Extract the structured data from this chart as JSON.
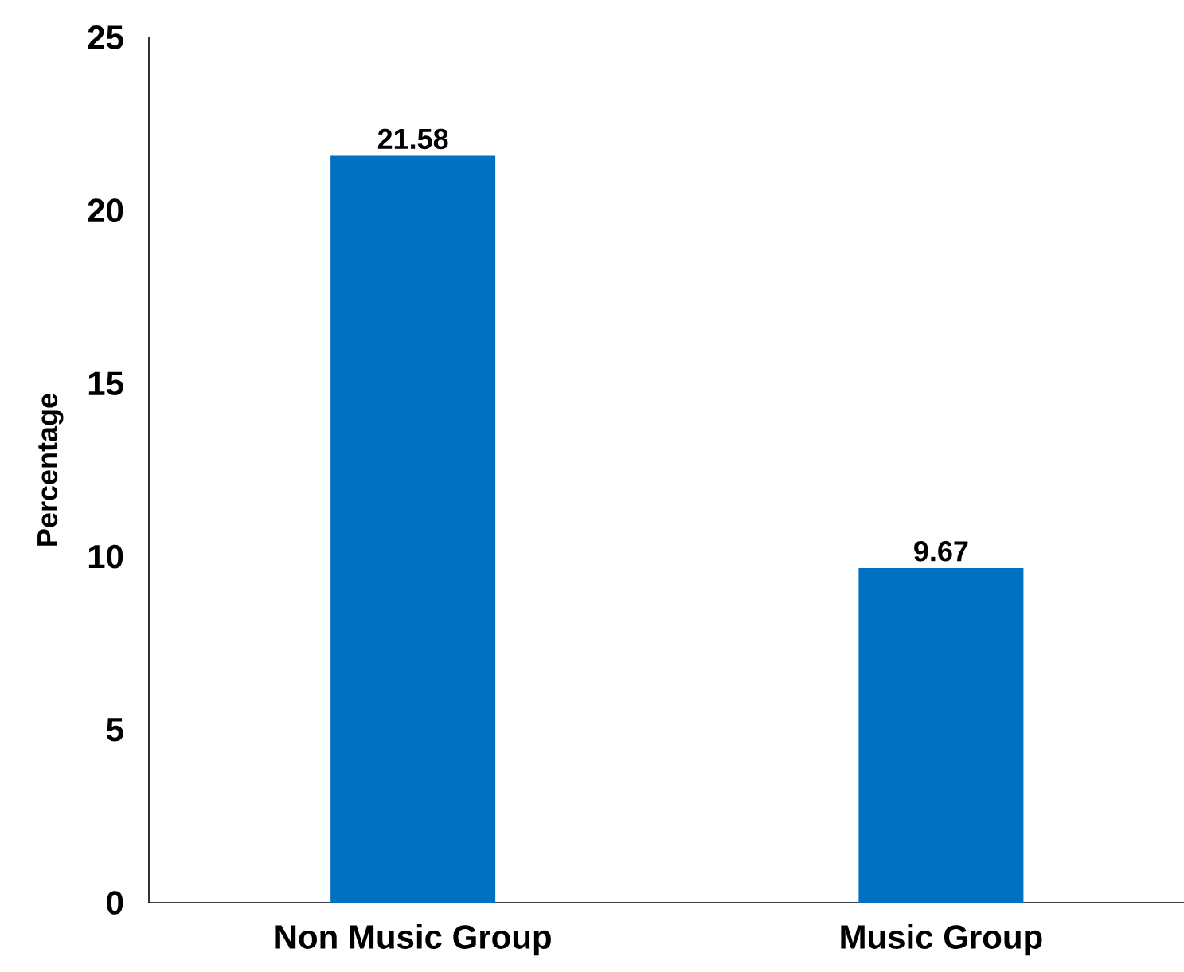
{
  "chart_data": {
    "type": "bar",
    "ylabel": "Percentage",
    "categories": [
      "Non Music Group",
      "Music Group"
    ],
    "values": [
      21.58,
      9.67
    ],
    "color": "#0070c0",
    "ylim": [
      0,
      25
    ],
    "yticks": [
      0,
      5,
      10,
      15,
      20,
      25
    ],
    "grid": false,
    "data_labels": true
  }
}
